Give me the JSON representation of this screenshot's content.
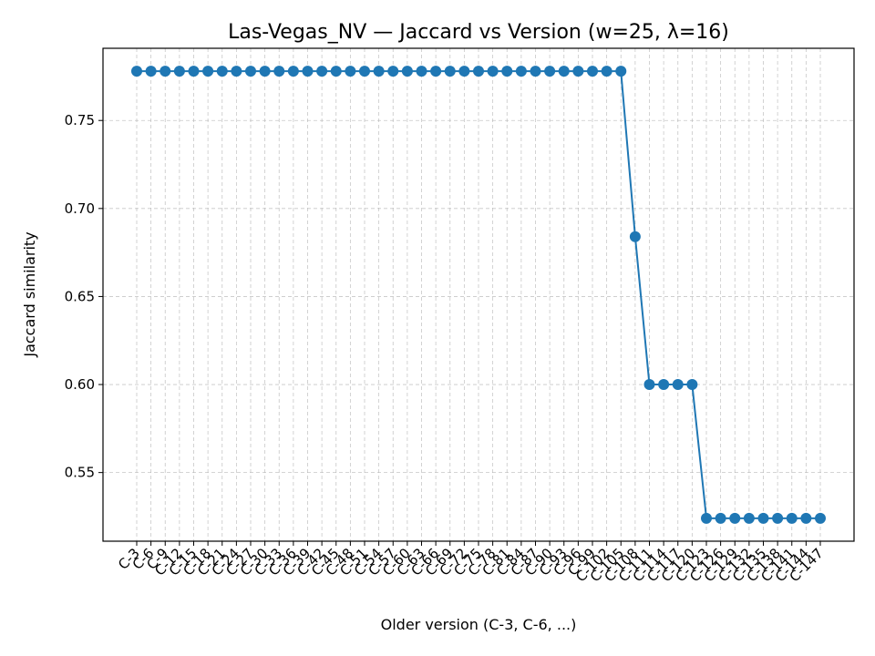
{
  "chart_data": {
    "type": "line",
    "title": "Las-Vegas_NV — Jaccard vs Version (w=25, λ=16)",
    "xlabel": "Older version (C-3, C-6, ...)",
    "ylabel": "Jaccard similarity",
    "categories": [
      "C-3",
      "C-6",
      "C-9",
      "C-12",
      "C-15",
      "C-18",
      "C-21",
      "C-24",
      "C-27",
      "C-30",
      "C-33",
      "C-36",
      "C-39",
      "C-42",
      "C-45",
      "C-48",
      "C-51",
      "C-54",
      "C-57",
      "C-60",
      "C-63",
      "C-66",
      "C-69",
      "C-72",
      "C-75",
      "C-78",
      "C-81",
      "C-84",
      "C-87",
      "C-90",
      "C-93",
      "C-96",
      "C-99",
      "C-102",
      "C-105",
      "C-108",
      "C-111",
      "C-114",
      "C-117",
      "C-120",
      "C-123",
      "C-126",
      "C-129",
      "C-132",
      "C-135",
      "C-138",
      "C-141",
      "C-144",
      "C-147"
    ],
    "series": [
      {
        "values": [
          0.778,
          0.778,
          0.778,
          0.778,
          0.778,
          0.778,
          0.778,
          0.778,
          0.778,
          0.778,
          0.778,
          0.778,
          0.778,
          0.778,
          0.778,
          0.778,
          0.778,
          0.778,
          0.778,
          0.778,
          0.778,
          0.778,
          0.778,
          0.778,
          0.778,
          0.778,
          0.778,
          0.778,
          0.778,
          0.778,
          0.778,
          0.778,
          0.778,
          0.778,
          0.778,
          0.684,
          0.6,
          0.6,
          0.6,
          0.6,
          0.524,
          0.524,
          0.524,
          0.524,
          0.524,
          0.524,
          0.524,
          0.524,
          0.524
        ],
        "color": "#1f77b4"
      }
    ],
    "yticks": [
      "0.55",
      "0.60",
      "0.65",
      "0.70",
      "0.75"
    ],
    "ylim": [
      0.511,
      0.791
    ],
    "grid": true,
    "line_color": "#1f77b4"
  }
}
